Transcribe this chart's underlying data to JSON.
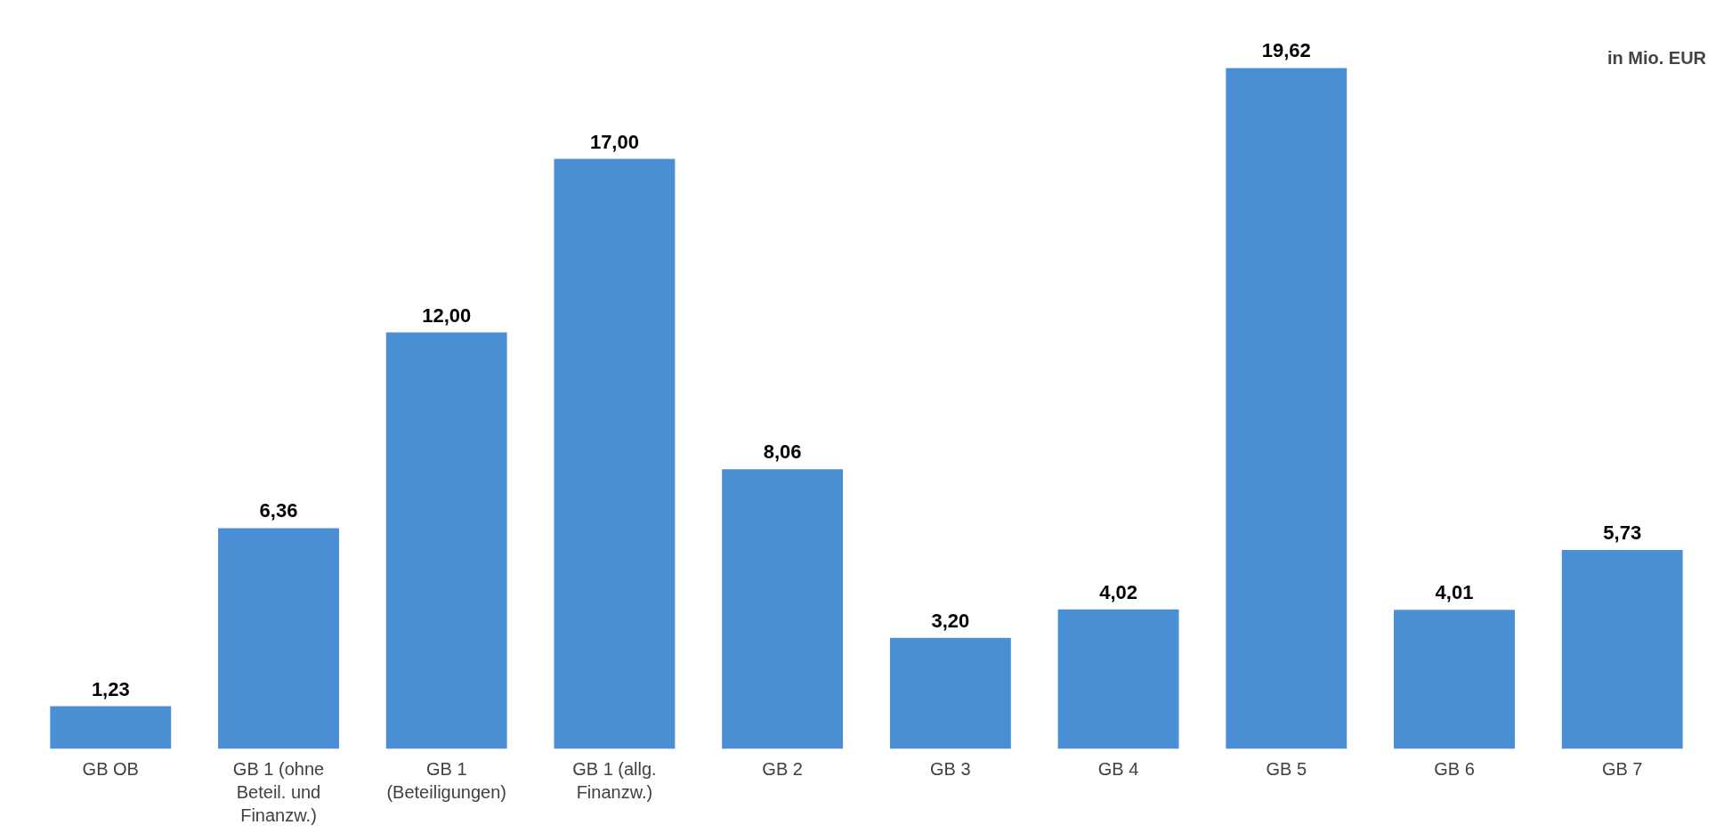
{
  "chart_data": {
    "type": "bar",
    "categories": [
      "GB OB",
      "GB 1 (ohne Beteil. und Finanzw.)",
      "GB 1 (Beteiligungen)",
      "GB 1 (allg. Finanzw.)",
      "GB 2",
      "GB 3",
      "GB 4",
      "GB 5",
      "GB 6",
      "GB 7"
    ],
    "values": [
      1.23,
      6.36,
      12.0,
      17.0,
      8.06,
      3.2,
      4.02,
      19.62,
      4.01,
      5.73
    ],
    "value_labels": [
      "1,23",
      "6,36",
      "12,00",
      "17,00",
      "8,06",
      "3,20",
      "4,02",
      "19,62",
      "4,01",
      "5,73"
    ],
    "color": "#4a8fd4",
    "annotations": [
      "in Mio. EUR"
    ],
    "grid": false,
    "tick_labels": "x"
  }
}
